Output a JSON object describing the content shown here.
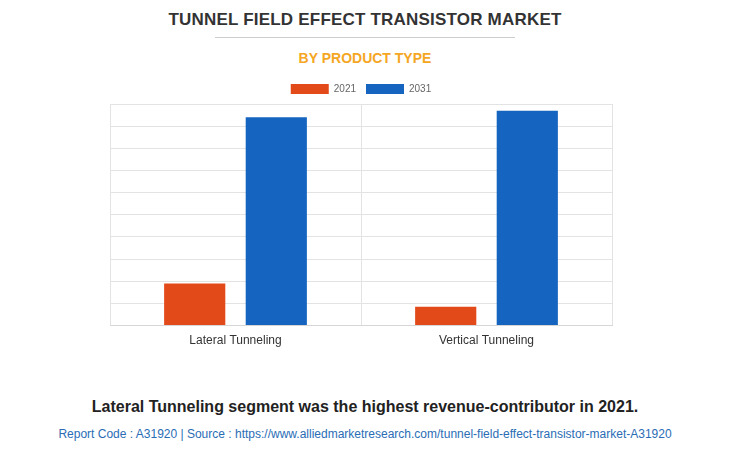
{
  "chart_data": {
    "type": "bar",
    "title": "TUNNEL FIELD EFFECT TRANSISTOR MARKET",
    "subtitle": "BY PRODUCT TYPE",
    "annotation": "Lateral Tunneling segment was the highest revenue-contributor in 2021.",
    "source": "Report Code : A31920  |  Source : https://www.alliedmarketresearch.com/tunnel-field-effect-transistor-market-A31920",
    "categories": [
      "Lateral Tunneling",
      "Vertical Tunneling"
    ],
    "series": [
      {
        "name": "2021",
        "color": "#e34a1a",
        "values": [
          1.9,
          0.85
        ]
      },
      {
        "name": "2031",
        "color": "#1565c0",
        "values": [
          9.4,
          9.7
        ]
      }
    ],
    "ylim": [
      0,
      10
    ],
    "yticks": [
      0,
      1,
      2,
      3,
      4,
      5,
      6,
      7,
      8,
      9,
      10
    ],
    "grid": true,
    "legend": "top",
    "tick_labels": "x"
  }
}
